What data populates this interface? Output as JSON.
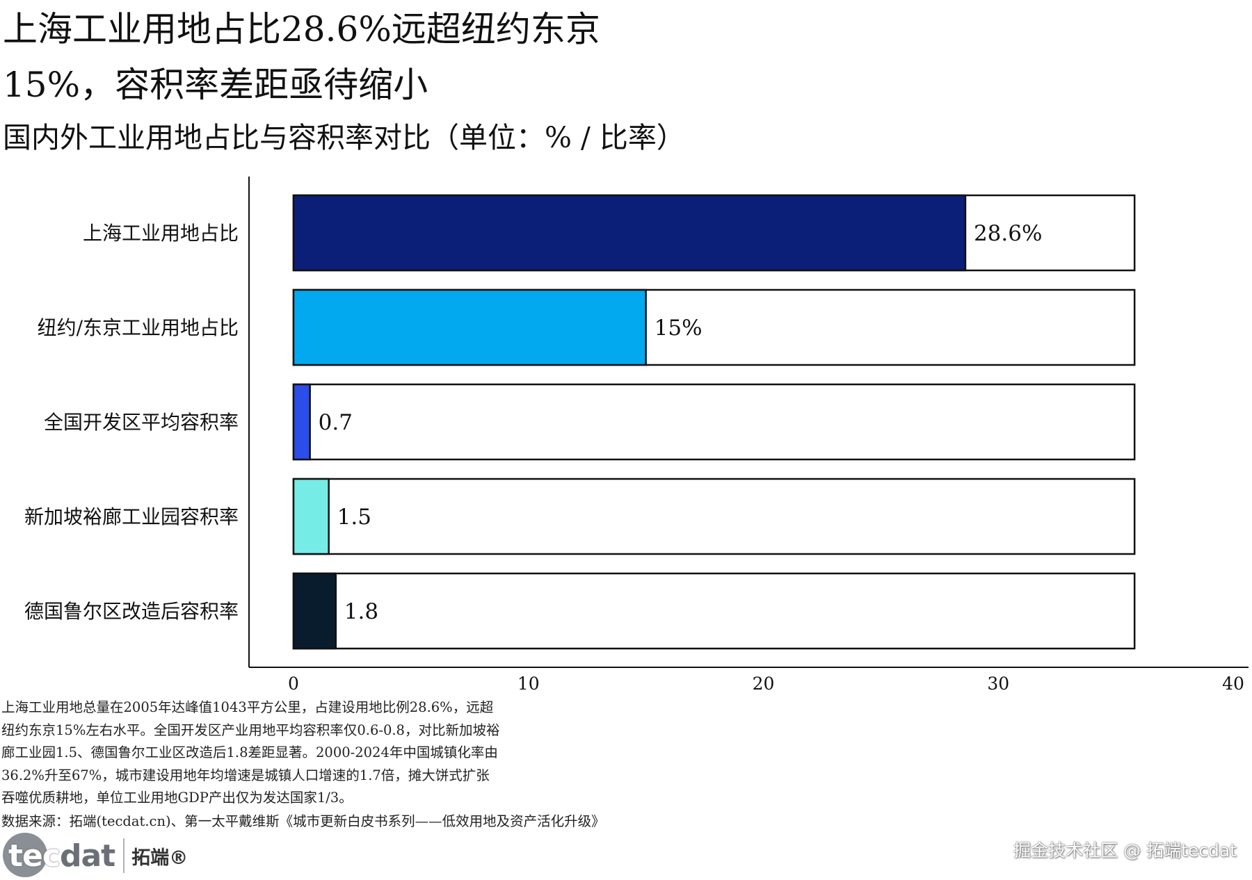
{
  "header": {
    "title_line1": "上海工业用地占比28.6%远超纽约东京",
    "title_line2": "15%，容积率差距亟待缩小",
    "subtitle": "国内外工业用地占比与容积率对比（单位：% / 比率）"
  },
  "chart_data": {
    "type": "bar",
    "orientation": "horizontal",
    "categories": [
      "上海工业用地占比",
      "纽约/东京工业用地占比",
      "全国开发区平均容积率",
      "新加坡裕廊工业园容积率",
      "德国鲁尔区改造后容积率"
    ],
    "values": [
      28.6,
      15,
      0.7,
      1.5,
      1.8
    ],
    "value_labels": [
      "28.6%",
      "15%",
      "0.7",
      "1.5",
      "1.8"
    ],
    "background_total": 35.8,
    "colors": [
      "#0b1f78",
      "#03a9ef",
      "#2b4dea",
      "#76ece6",
      "#081c2d"
    ],
    "xlim": [
      0,
      40
    ],
    "xticks": [
      "0",
      "10",
      "20",
      "30",
      "40"
    ],
    "grid": false,
    "legend": "none"
  },
  "footnote": {
    "lines": [
      "上海工业用地总量在2005年达峰值1043平方公里，占建设用地比例28.6%，远超",
      "纽约东京15%左右水平。全国开发区产业用地平均容积率仅0.6-0.8，对比新加坡裕",
      "廊工业园1.5、德国鲁尔工业区改造后1.8差距显著。2000-2024年中国城镇化率由",
      "36.2%升至67%，城市建设用地年均增速是城镇人口增速的1.7倍，摊大饼式扩张",
      "吞噬优质耕地，单位工业用地GDP产出仅为发达国家1/3。"
    ],
    "source": "数据来源：拓端(tecdat.cn)、第一太平戴维斯《城市更新白皮书系列——低效用地及资产活化升级》"
  },
  "logo": {
    "en_a": "tec",
    "en_b": "dat",
    "cn": "拓端®"
  },
  "watermark": "掘金技术社区 @ 拓端tecdat"
}
